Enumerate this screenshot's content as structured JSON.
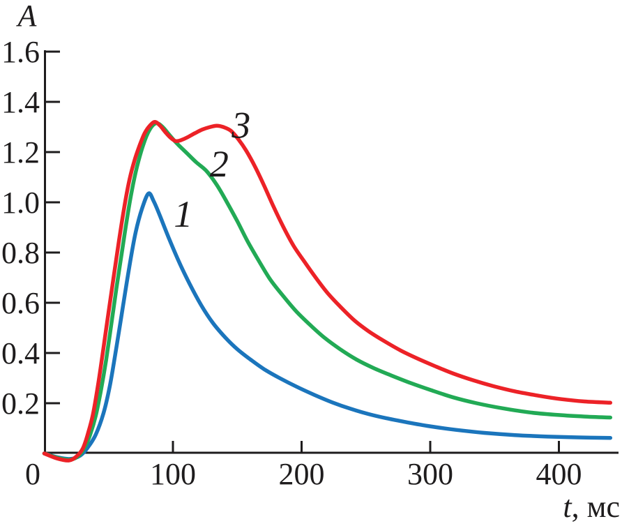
{
  "figure": {
    "background": "#ffffff",
    "text_color": "#1e1c1d",
    "x_axis_label_italic": "t",
    "x_axis_label_rest": ", мс"
  },
  "chart_data": {
    "type": "line",
    "title": "",
    "xlabel": "t, мс",
    "ylabel": "A",
    "xlim": [
      0,
      444
    ],
    "ylim": [
      -0.05,
      1.6
    ],
    "x_ticks": [
      0,
      100,
      200,
      300,
      400
    ],
    "y_ticks": [
      0.2,
      0.4,
      0.6,
      0.8,
      1.0,
      1.2,
      1.4,
      1.6
    ],
    "grid": false,
    "legend_position": "none (curves labeled inline with italic numbers)",
    "series": [
      {
        "name": "1",
        "color": "#1B75BC",
        "points": [
          [
            0,
            0
          ],
          [
            10,
            -0.015
          ],
          [
            20,
            -0.022
          ],
          [
            28,
            -0.008
          ],
          [
            34,
            0.025
          ],
          [
            40,
            0.075
          ],
          [
            46,
            0.16
          ],
          [
            51,
            0.27
          ],
          [
            56,
            0.42
          ],
          [
            61,
            0.58
          ],
          [
            66,
            0.74
          ],
          [
            71,
            0.88
          ],
          [
            76,
            0.975
          ],
          [
            81,
            1.035
          ],
          [
            85,
            1.005
          ],
          [
            90,
            0.945
          ],
          [
            97,
            0.855
          ],
          [
            105,
            0.76
          ],
          [
            113,
            0.675
          ],
          [
            122,
            0.59
          ],
          [
            131,
            0.52
          ],
          [
            141,
            0.46
          ],
          [
            150,
            0.415
          ],
          [
            160,
            0.375
          ],
          [
            171,
            0.335
          ],
          [
            183,
            0.3
          ],
          [
            196,
            0.266
          ],
          [
            210,
            0.233
          ],
          [
            224,
            0.203
          ],
          [
            238,
            0.178
          ],
          [
            252,
            0.157
          ],
          [
            266,
            0.14
          ],
          [
            282,
            0.124
          ],
          [
            300,
            0.108
          ],
          [
            320,
            0.094
          ],
          [
            342,
            0.082
          ],
          [
            366,
            0.073
          ],
          [
            392,
            0.067
          ],
          [
            415,
            0.064
          ],
          [
            440,
            0.062
          ]
        ]
      },
      {
        "name": "2",
        "color": "#22AA55",
        "points": [
          [
            0,
            0
          ],
          [
            10,
            -0.017
          ],
          [
            20,
            -0.025
          ],
          [
            27,
            -0.008
          ],
          [
            32,
            0.03
          ],
          [
            36,
            0.08
          ],
          [
            40,
            0.15
          ],
          [
            44,
            0.25
          ],
          [
            48,
            0.37
          ],
          [
            52,
            0.51
          ],
          [
            56,
            0.655
          ],
          [
            60,
            0.79
          ],
          [
            64,
            0.925
          ],
          [
            68,
            1.045
          ],
          [
            72,
            1.14
          ],
          [
            77,
            1.23
          ],
          [
            82,
            1.29
          ],
          [
            87,
            1.315
          ],
          [
            92,
            1.3
          ],
          [
            97,
            1.27
          ],
          [
            103,
            1.235
          ],
          [
            110,
            1.2
          ],
          [
            118,
            1.16
          ],
          [
            126,
            1.125
          ],
          [
            134,
            1.07
          ],
          [
            142,
            1.0
          ],
          [
            150,
            0.925
          ],
          [
            158,
            0.845
          ],
          [
            167,
            0.765
          ],
          [
            176,
            0.69
          ],
          [
            186,
            0.625
          ],
          [
            196,
            0.565
          ],
          [
            207,
            0.51
          ],
          [
            218,
            0.46
          ],
          [
            230,
            0.415
          ],
          [
            243,
            0.373
          ],
          [
            256,
            0.34
          ],
          [
            270,
            0.31
          ],
          [
            285,
            0.28
          ],
          [
            300,
            0.253
          ],
          [
            318,
            0.223
          ],
          [
            336,
            0.2
          ],
          [
            356,
            0.18
          ],
          [
            378,
            0.163
          ],
          [
            400,
            0.153
          ],
          [
            420,
            0.147
          ],
          [
            440,
            0.143
          ]
        ]
      },
      {
        "name": "3",
        "color": "#EC2227",
        "points": [
          [
            0,
            0
          ],
          [
            10,
            -0.02
          ],
          [
            19,
            -0.028
          ],
          [
            25,
            -0.012
          ],
          [
            30,
            0.02
          ],
          [
            34,
            0.08
          ],
          [
            38,
            0.16
          ],
          [
            42,
            0.28
          ],
          [
            46,
            0.42
          ],
          [
            50,
            0.565
          ],
          [
            54,
            0.705
          ],
          [
            58,
            0.845
          ],
          [
            62,
            0.975
          ],
          [
            66,
            1.085
          ],
          [
            70,
            1.165
          ],
          [
            74,
            1.225
          ],
          [
            78,
            1.275
          ],
          [
            82,
            1.305
          ],
          [
            86,
            1.32
          ],
          [
            90,
            1.305
          ],
          [
            94,
            1.28
          ],
          [
            98,
            1.258
          ],
          [
            102,
            1.244
          ],
          [
            106,
            1.247
          ],
          [
            111,
            1.258
          ],
          [
            117,
            1.275
          ],
          [
            123,
            1.29
          ],
          [
            129,
            1.3
          ],
          [
            134,
            1.305
          ],
          [
            139,
            1.3
          ],
          [
            145,
            1.285
          ],
          [
            151,
            1.25
          ],
          [
            157,
            1.205
          ],
          [
            164,
            1.14
          ],
          [
            171,
            1.065
          ],
          [
            178,
            0.985
          ],
          [
            186,
            0.9
          ],
          [
            194,
            0.825
          ],
          [
            202,
            0.765
          ],
          [
            211,
            0.7
          ],
          [
            220,
            0.64
          ],
          [
            230,
            0.585
          ],
          [
            241,
            0.53
          ],
          [
            252,
            0.487
          ],
          [
            264,
            0.448
          ],
          [
            277,
            0.41
          ],
          [
            290,
            0.378
          ],
          [
            304,
            0.347
          ],
          [
            318,
            0.318
          ],
          [
            333,
            0.292
          ],
          [
            349,
            0.268
          ],
          [
            366,
            0.247
          ],
          [
            384,
            0.23
          ],
          [
            402,
            0.216
          ],
          [
            420,
            0.207
          ],
          [
            440,
            0.202
          ]
        ]
      }
    ],
    "curve_labels": [
      {
        "text": "1",
        "t": 108,
        "a": 0.955
      },
      {
        "text": "2",
        "t": 136,
        "a": 1.155
      },
      {
        "text": "3",
        "t": 153,
        "a": 1.31
      }
    ]
  }
}
